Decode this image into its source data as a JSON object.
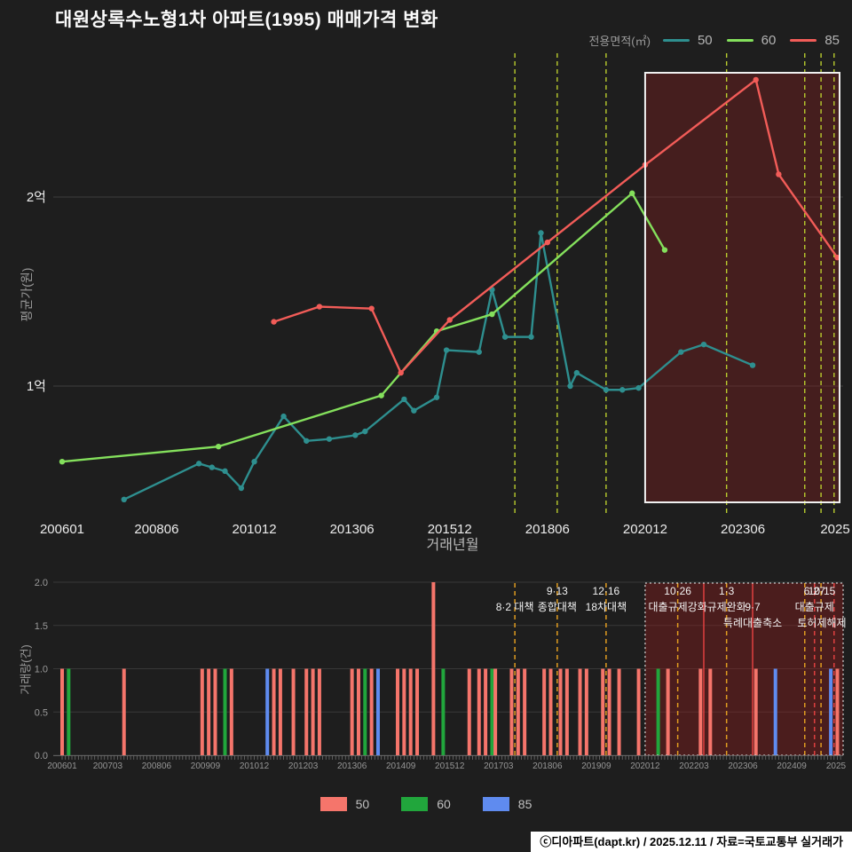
{
  "title": "대원상록수노형1차 아파트(1995) 매매가격 변화",
  "top_legend": {
    "label": "전용면적(㎡)",
    "items": [
      {
        "name": "50",
        "color": "#2e8f8f"
      },
      {
        "name": "60",
        "color": "#84e05c"
      },
      {
        "name": "85",
        "color": "#f25c58"
      }
    ]
  },
  "bottom_legend": [
    {
      "name": "50",
      "color": "#f5756b"
    },
    {
      "name": "60",
      "color": "#21a63c"
    },
    {
      "name": "85",
      "color": "#5f8bef"
    }
  ],
  "footer": {
    "text": "ⓒ디아파트(dapt.kr) / 2025.12.11 / 자료=국토교통부 실거래가"
  },
  "colors": {
    "background": "#1e1e1e",
    "grid": "#3d3d3d",
    "policy_yellow": "#b9cc2e",
    "policy_orange": "#e09c20",
    "policy_red": "#e04040",
    "highlight_fill": "rgba(150,30,30,0.33)",
    "highlight_fill2": "rgba(150,30,30,0.38)",
    "region_border": "#f0f0f0"
  },
  "chart_data": [
    {
      "type": "line",
      "title": "매매가격 변화",
      "xlabel": "거래년월",
      "ylabel": "평균가(원)",
      "y_unit": "억원",
      "ylim": [
        0.3,
        2.8
      ],
      "y_ticks": [
        {
          "value": 1,
          "label": "1억"
        },
        {
          "value": 2,
          "label": "2억"
        }
      ],
      "x_ticks": [
        {
          "label": "200601",
          "m": "2006-01"
        },
        {
          "label": "200806",
          "m": "2008-06"
        },
        {
          "label": "201012",
          "m": "2010-12"
        },
        {
          "label": "201306",
          "m": "2013-06"
        },
        {
          "label": "201512",
          "m": "2015-12"
        },
        {
          "label": "201806",
          "m": "2018-06"
        },
        {
          "label": "202012",
          "m": "2020-12"
        },
        {
          "label": "202306",
          "m": "2023-06"
        },
        {
          "label": "2025",
          "m": "2025-12"
        }
      ],
      "series": [
        {
          "name": "50",
          "color": "#2e8f8f",
          "points": [
            [
              "2007-08",
              0.4
            ],
            [
              "2009-07",
              0.59
            ],
            [
              "2009-11",
              0.57
            ],
            [
              "2010-03",
              0.55
            ],
            [
              "2010-08",
              0.46
            ],
            [
              "2010-12",
              0.6
            ],
            [
              "2011-09",
              0.84
            ],
            [
              "2012-04",
              0.71
            ],
            [
              "2012-11",
              0.72
            ],
            [
              "2013-07",
              0.74
            ],
            [
              "2013-10",
              0.76
            ],
            [
              "2014-10",
              0.93
            ],
            [
              "2015-01",
              0.87
            ],
            [
              "2015-08",
              0.94
            ],
            [
              "2015-11",
              1.19
            ],
            [
              "2016-09",
              1.18
            ],
            [
              "2017-01",
              1.51
            ],
            [
              "2017-05",
              1.26
            ],
            [
              "2018-01",
              1.26
            ],
            [
              "2018-04",
              1.81
            ],
            [
              "2019-01",
              1.0
            ],
            [
              "2019-03",
              1.07
            ],
            [
              "2019-12",
              0.98
            ],
            [
              "2020-05",
              0.98
            ],
            [
              "2020-10",
              0.99
            ],
            [
              "2021-11",
              1.18
            ],
            [
              "2022-06",
              1.22
            ],
            [
              "2023-09",
              1.11
            ]
          ]
        },
        {
          "name": "60",
          "color": "#84e05c",
          "points": [
            [
              "2006-01",
              0.6
            ],
            [
              "2010-01",
              0.68
            ],
            [
              "2014-03",
              0.95
            ],
            [
              "2015-08",
              1.29
            ],
            [
              "2017-01",
              1.38
            ],
            [
              "2020-08",
              2.02
            ],
            [
              "2021-06",
              1.72
            ]
          ]
        },
        {
          "name": "85",
          "color": "#f25c58",
          "points": [
            [
              "2011-06",
              1.34
            ],
            [
              "2012-08",
              1.42
            ],
            [
              "2013-12",
              1.41
            ],
            [
              "2014-09",
              1.07
            ],
            [
              "2015-12",
              1.35
            ],
            [
              "2018-06",
              1.76
            ],
            [
              "2020-12",
              2.17
            ],
            [
              "2023-10",
              2.62
            ],
            [
              "2024-05",
              2.12
            ],
            [
              "2025-11",
              1.68
            ]
          ]
        }
      ],
      "policy_lines": [
        "2017-08",
        "2018-09",
        "2019-12",
        "2023-01",
        "2025-01",
        "2025-06",
        "2025-10"
      ],
      "highlight": {
        "from": "2020-12",
        "to": "2025-12"
      }
    },
    {
      "type": "bar",
      "ylabel": "거래량(건)",
      "ylim": [
        0,
        2
      ],
      "y_ticks": [
        {
          "value": 2,
          "label": "2.0"
        },
        {
          "value": 1.5,
          "label": "1.5"
        },
        {
          "value": 1,
          "label": "1.0"
        },
        {
          "value": 0.5,
          "label": "0.5"
        },
        {
          "value": 0,
          "label": "0.0"
        }
      ],
      "x_ticks": [
        {
          "label": "200601",
          "m": "2006-01"
        },
        {
          "label": "200703",
          "m": "2007-03"
        },
        {
          "label": "200806",
          "m": "2008-06"
        },
        {
          "label": "200909",
          "m": "2009-09"
        },
        {
          "label": "201012",
          "m": "2010-12"
        },
        {
          "label": "201203",
          "m": "2012-03"
        },
        {
          "label": "201306",
          "m": "2013-06"
        },
        {
          "label": "201409",
          "m": "2014-09"
        },
        {
          "label": "201512",
          "m": "2015-12"
        },
        {
          "label": "201703",
          "m": "2017-03"
        },
        {
          "label": "201806",
          "m": "2018-06"
        },
        {
          "label": "201909",
          "m": "2019-09"
        },
        {
          "label": "202012",
          "m": "2020-12"
        },
        {
          "label": "202203",
          "m": "2022-03"
        },
        {
          "label": "202306",
          "m": "2023-06"
        },
        {
          "label": "202409",
          "m": "2024-09"
        },
        {
          "label": "2025",
          "m": "2025-12"
        }
      ],
      "size_colors": {
        "50": "#f5756b",
        "60": "#21a63c",
        "85": "#5f8bef"
      },
      "bars": [
        {
          "m": "2006-01",
          "size": "50",
          "count": 1
        },
        {
          "m": "2006-03",
          "size": "60",
          "count": 1
        },
        {
          "m": "2007-08",
          "size": "50",
          "count": 1
        },
        {
          "m": "2009-08",
          "size": "50",
          "count": 1
        },
        {
          "m": "2009-10",
          "size": "50",
          "count": 1
        },
        {
          "m": "2009-12",
          "size": "50",
          "count": 1
        },
        {
          "m": "2010-03",
          "size": "60",
          "count": 1
        },
        {
          "m": "2010-05",
          "size": "50",
          "count": 1
        },
        {
          "m": "2011-04",
          "size": "85",
          "count": 1
        },
        {
          "m": "2011-06",
          "size": "50",
          "count": 1
        },
        {
          "m": "2011-08",
          "size": "50",
          "count": 1
        },
        {
          "m": "2011-12",
          "size": "50",
          "count": 1
        },
        {
          "m": "2012-04",
          "size": "50",
          "count": 1
        },
        {
          "m": "2012-06",
          "size": "50",
          "count": 1
        },
        {
          "m": "2012-08",
          "size": "50",
          "count": 1
        },
        {
          "m": "2013-06",
          "size": "50",
          "count": 1
        },
        {
          "m": "2013-08",
          "size": "50",
          "count": 1
        },
        {
          "m": "2013-10",
          "size": "60",
          "count": 1
        },
        {
          "m": "2013-12",
          "size": "50",
          "count": 1
        },
        {
          "m": "2014-02",
          "size": "85",
          "count": 1
        },
        {
          "m": "2014-08",
          "size": "50",
          "count": 1
        },
        {
          "m": "2014-10",
          "size": "50",
          "count": 1
        },
        {
          "m": "2014-12",
          "size": "50",
          "count": 1
        },
        {
          "m": "2015-02",
          "size": "50",
          "count": 1
        },
        {
          "m": "2015-07",
          "size": "50",
          "count": 2
        },
        {
          "m": "2015-10",
          "size": "60",
          "count": 1
        },
        {
          "m": "2016-06",
          "size": "50",
          "count": 1
        },
        {
          "m": "2016-09",
          "size": "50",
          "count": 1
        },
        {
          "m": "2016-11",
          "size": "50",
          "count": 1
        },
        {
          "m": "2017-01",
          "size": "60",
          "count": 1
        },
        {
          "m": "2017-02",
          "size": "50",
          "count": 1
        },
        {
          "m": "2017-07",
          "size": "50",
          "count": 1
        },
        {
          "m": "2017-09",
          "size": "50",
          "count": 1
        },
        {
          "m": "2017-11",
          "size": "50",
          "count": 1
        },
        {
          "m": "2018-05",
          "size": "50",
          "count": 1
        },
        {
          "m": "2018-07",
          "size": "50",
          "count": 1
        },
        {
          "m": "2018-10",
          "size": "50",
          "count": 1
        },
        {
          "m": "2018-12",
          "size": "50",
          "count": 1
        },
        {
          "m": "2019-04",
          "size": "50",
          "count": 1
        },
        {
          "m": "2019-06",
          "size": "50",
          "count": 1
        },
        {
          "m": "2019-11",
          "size": "50",
          "count": 1
        },
        {
          "m": "2020-01",
          "size": "50",
          "count": 1
        },
        {
          "m": "2020-04",
          "size": "50",
          "count": 1
        },
        {
          "m": "2020-10",
          "size": "50",
          "count": 1
        },
        {
          "m": "2021-04",
          "size": "60",
          "count": 1
        },
        {
          "m": "2021-07",
          "size": "50",
          "count": 1
        },
        {
          "m": "2022-05",
          "size": "50",
          "count": 1
        },
        {
          "m": "2022-08",
          "size": "50",
          "count": 1
        },
        {
          "m": "2023-10",
          "size": "50",
          "count": 1
        },
        {
          "m": "2024-04",
          "size": "85",
          "count": 1
        },
        {
          "m": "2025-09",
          "size": "85",
          "count": 1
        },
        {
          "m": "2025-11",
          "size": "50",
          "count": 1
        }
      ],
      "lines": [
        {
          "m": "2017-08",
          "color": "orange",
          "dash": true
        },
        {
          "m": "2018-09",
          "color": "orange",
          "dash": true
        },
        {
          "m": "2019-12",
          "color": "orange",
          "dash": true
        },
        {
          "m": "2021-10",
          "color": "orange",
          "dash": true
        },
        {
          "m": "2022-06",
          "color": "red",
          "dash": false
        },
        {
          "m": "2023-01",
          "color": "orange",
          "dash": true
        },
        {
          "m": "2023-09",
          "color": "red",
          "dash": false
        },
        {
          "m": "2025-01",
          "color": "orange",
          "dash": true
        },
        {
          "m": "2025-04",
          "color": "red",
          "dash": true
        },
        {
          "m": "2025-06",
          "color": "orange",
          "dash": true
        },
        {
          "m": "2025-10",
          "color": "red",
          "dash": true
        }
      ],
      "annotations": [
        {
          "m": "2017-08",
          "r2": "8·2 대책"
        },
        {
          "m": "2018-09",
          "r1": "9·13",
          "r2": "종합대책"
        },
        {
          "m": "2019-12",
          "r1": "12·16",
          "r2": "18차대책"
        },
        {
          "m": "2021-10",
          "r1": "10·26",
          "r2": "대출규제강화"
        },
        {
          "m": "2023-01",
          "r1": "1·3",
          "r2": "규제완화"
        },
        {
          "m": "2023-09",
          "r2": "9·7",
          "r3": "특례대출축소"
        },
        {
          "m": "2025-04",
          "r1": "6·27",
          "r2": "대출규제"
        },
        {
          "m": "2025-10",
          "r1": "10·15",
          "r3": "토허제해제"
        }
      ],
      "highlight": {
        "from": "2020-12",
        "to": "2025-12"
      }
    }
  ]
}
